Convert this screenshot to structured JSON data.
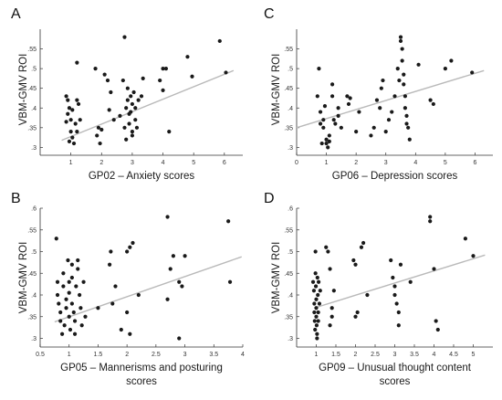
{
  "chart_data": [
    {
      "panel": "A",
      "type": "scatter",
      "xlabel": "GP02 – Anxiety scores",
      "xlabel2": "",
      "ylabel": "VBM-GMV ROI",
      "xlim": [
        0,
        6.6
      ],
      "ylim": [
        0.28,
        0.6
      ],
      "xticks": [
        1,
        2,
        3,
        4,
        5,
        6
      ],
      "yticks": [
        0.3,
        0.35,
        0.4,
        0.45,
        0.5,
        0.55
      ],
      "grid": false,
      "legend": "none",
      "fit": [
        [
          0.7,
          0.318
        ],
        [
          6.3,
          0.495
        ]
      ],
      "points": [
        [
          0.85,
          0.43
        ],
        [
          0.9,
          0.385
        ],
        [
          0.85,
          0.365
        ],
        [
          0.95,
          0.4
        ],
        [
          0.9,
          0.42
        ],
        [
          1.0,
          0.37
        ],
        [
          1.05,
          0.395
        ],
        [
          1.0,
          0.34
        ],
        [
          1.1,
          0.31
        ],
        [
          1.05,
          0.325
        ],
        [
          0.95,
          0.315
        ],
        [
          1.2,
          0.42
        ],
        [
          1.25,
          0.41
        ],
        [
          1.3,
          0.37
        ],
        [
          1.2,
          0.515
        ],
        [
          1.15,
          0.36
        ],
        [
          1.2,
          0.34
        ],
        [
          1.8,
          0.5
        ],
        [
          1.85,
          0.33
        ],
        [
          1.9,
          0.35
        ],
        [
          2.0,
          0.345
        ],
        [
          1.95,
          0.31
        ],
        [
          2.1,
          0.485
        ],
        [
          2.2,
          0.47
        ],
        [
          2.25,
          0.395
        ],
        [
          2.3,
          0.44
        ],
        [
          2.4,
          0.37
        ],
        [
          2.6,
          0.38
        ],
        [
          2.7,
          0.47
        ],
        [
          2.75,
          0.58
        ],
        [
          2.8,
          0.32
        ],
        [
          2.75,
          0.35
        ],
        [
          2.8,
          0.4
        ],
        [
          2.85,
          0.42
        ],
        [
          2.9,
          0.36
        ],
        [
          2.85,
          0.45
        ],
        [
          2.9,
          0.385
        ],
        [
          2.95,
          0.43
        ],
        [
          3.0,
          0.34
        ],
        [
          3.0,
          0.33
        ],
        [
          2.95,
          0.39
        ],
        [
          3.0,
          0.41
        ],
        [
          3.05,
          0.44
        ],
        [
          3.1,
          0.37
        ],
        [
          3.1,
          0.4
        ],
        [
          3.15,
          0.35
        ],
        [
          3.2,
          0.42
        ],
        [
          3.3,
          0.43
        ],
        [
          3.35,
          0.475
        ],
        [
          3.9,
          0.47
        ],
        [
          4.0,
          0.5
        ],
        [
          4.0,
          0.445
        ],
        [
          4.1,
          0.5
        ],
        [
          4.2,
          0.34
        ],
        [
          4.8,
          0.53
        ],
        [
          4.95,
          0.48
        ],
        [
          5.85,
          0.57
        ],
        [
          6.05,
          0.49
        ]
      ]
    },
    {
      "panel": "C",
      "type": "scatter",
      "xlabel": "GP06 – Depression scores",
      "xlabel2": "",
      "ylabel": "VBM-GMV ROI",
      "xlim": [
        0,
        6.6
      ],
      "ylim": [
        0.28,
        0.6
      ],
      "xticks": [
        0,
        1,
        2,
        3,
        4,
        5,
        6
      ],
      "yticks": [
        0.3,
        0.35,
        0.4,
        0.45,
        0.5,
        0.55
      ],
      "grid": false,
      "legend": "none",
      "fit": [
        [
          0.0,
          0.35
        ],
        [
          6.3,
          0.495
        ]
      ],
      "points": [
        [
          0.7,
          0.43
        ],
        [
          0.75,
          0.5
        ],
        [
          0.8,
          0.39
        ],
        [
          0.8,
          0.36
        ],
        [
          0.85,
          0.31
        ],
        [
          0.9,
          0.35
        ],
        [
          0.9,
          0.37
        ],
        [
          0.95,
          0.405
        ],
        [
          1.0,
          0.31
        ],
        [
          1.0,
          0.32
        ],
        [
          1.05,
          0.3
        ],
        [
          1.1,
          0.315
        ],
        [
          1.1,
          0.33
        ],
        [
          1.2,
          0.46
        ],
        [
          1.2,
          0.43
        ],
        [
          1.25,
          0.37
        ],
        [
          1.3,
          0.36
        ],
        [
          1.4,
          0.38
        ],
        [
          1.4,
          0.4
        ],
        [
          1.5,
          0.35
        ],
        [
          1.7,
          0.43
        ],
        [
          1.75,
          0.41
        ],
        [
          1.8,
          0.425
        ],
        [
          2.0,
          0.34
        ],
        [
          2.1,
          0.39
        ],
        [
          2.5,
          0.33
        ],
        [
          2.6,
          0.35
        ],
        [
          2.7,
          0.42
        ],
        [
          2.8,
          0.4
        ],
        [
          2.85,
          0.45
        ],
        [
          2.9,
          0.47
        ],
        [
          3.0,
          0.34
        ],
        [
          3.1,
          0.37
        ],
        [
          3.2,
          0.39
        ],
        [
          3.3,
          0.43
        ],
        [
          3.4,
          0.5
        ],
        [
          3.45,
          0.47
        ],
        [
          3.5,
          0.58
        ],
        [
          3.5,
          0.57
        ],
        [
          3.55,
          0.55
        ],
        [
          3.55,
          0.52
        ],
        [
          3.6,
          0.485
        ],
        [
          3.6,
          0.46
        ],
        [
          3.65,
          0.43
        ],
        [
          3.65,
          0.4
        ],
        [
          3.7,
          0.38
        ],
        [
          3.7,
          0.36
        ],
        [
          3.75,
          0.35
        ],
        [
          3.8,
          0.32
        ],
        [
          4.1,
          0.51
        ],
        [
          4.5,
          0.42
        ],
        [
          4.6,
          0.41
        ],
        [
          5.0,
          0.5
        ],
        [
          5.2,
          0.52
        ],
        [
          5.9,
          0.49
        ]
      ]
    },
    {
      "panel": "B",
      "type": "scatter",
      "xlabel": "GP05 –  Mannerisms and posturing",
      "xlabel2": "scores",
      "ylabel": "VBM-GMV ROI",
      "xlim": [
        0.5,
        4.0
      ],
      "ylim": [
        0.28,
        0.6
      ],
      "xticks": [
        0.5,
        1,
        1.5,
        2,
        2.5,
        3,
        3.5,
        4
      ],
      "yticks": [
        0.3,
        0.35,
        0.4,
        0.45,
        0.5,
        0.55,
        0.6
      ],
      "grid": false,
      "legend": "none",
      "fit": [
        [
          0.75,
          0.338
        ],
        [
          3.98,
          0.488
        ]
      ],
      "points": [
        [
          0.78,
          0.53
        ],
        [
          0.8,
          0.43
        ],
        [
          0.8,
          0.4
        ],
        [
          0.82,
          0.38
        ],
        [
          0.85,
          0.36
        ],
        [
          0.85,
          0.34
        ],
        [
          0.88,
          0.31
        ],
        [
          0.9,
          0.45
        ],
        [
          0.9,
          0.42
        ],
        [
          0.92,
          0.33
        ],
        [
          0.95,
          0.39
        ],
        [
          0.95,
          0.37
        ],
        [
          0.98,
          0.48
        ],
        [
          1.0,
          0.43
        ],
        [
          1.0,
          0.405
        ],
        [
          1.0,
          0.35
        ],
        [
          1.02,
          0.32
        ],
        [
          1.05,
          0.47
        ],
        [
          1.05,
          0.44
        ],
        [
          1.05,
          0.38
        ],
        [
          1.08,
          0.36
        ],
        [
          1.1,
          0.34
        ],
        [
          1.1,
          0.31
        ],
        [
          1.12,
          0.42
        ],
        [
          1.15,
          0.48
        ],
        [
          1.15,
          0.46
        ],
        [
          1.18,
          0.4
        ],
        [
          1.2,
          0.37
        ],
        [
          1.22,
          0.33
        ],
        [
          1.25,
          0.43
        ],
        [
          1.28,
          0.35
        ],
        [
          1.5,
          0.37
        ],
        [
          1.7,
          0.47
        ],
        [
          1.72,
          0.5
        ],
        [
          1.75,
          0.38
        ],
        [
          1.8,
          0.42
        ],
        [
          1.9,
          0.32
        ],
        [
          2.0,
          0.5
        ],
        [
          2.05,
          0.51
        ],
        [
          2.1,
          0.52
        ],
        [
          2.2,
          0.4
        ],
        [
          2.0,
          0.36
        ],
        [
          2.05,
          0.31
        ],
        [
          2.7,
          0.58
        ],
        [
          2.7,
          0.39
        ],
        [
          2.75,
          0.46
        ],
        [
          2.8,
          0.49
        ],
        [
          2.9,
          0.43
        ],
        [
          2.9,
          0.3
        ],
        [
          3.0,
          0.49
        ],
        [
          2.95,
          0.42
        ],
        [
          3.75,
          0.57
        ],
        [
          3.78,
          0.43
        ]
      ]
    },
    {
      "panel": "D",
      "type": "scatter",
      "xlabel": "GP09 – Unusual thought content",
      "xlabel2": "scores",
      "ylabel": "VBM-GMV ROI",
      "xlim": [
        0.5,
        5.5
      ],
      "ylim": [
        0.28,
        0.6
      ],
      "xticks": [
        1,
        1.5,
        2,
        2.5,
        3,
        3.5,
        4,
        4.5,
        5
      ],
      "yticks": [
        0.3,
        0.35,
        0.4,
        0.45,
        0.5,
        0.55,
        0.6
      ],
      "grid": false,
      "legend": "none",
      "fit": [
        [
          0.95,
          0.37
        ],
        [
          5.3,
          0.492
        ]
      ],
      "points": [
        [
          0.92,
          0.43
        ],
        [
          0.94,
          0.41
        ],
        [
          0.95,
          0.38
        ],
        [
          0.95,
          0.36
        ],
        [
          0.96,
          0.34
        ],
        [
          0.97,
          0.32
        ],
        [
          0.98,
          0.5
        ],
        [
          0.98,
          0.45
        ],
        [
          0.99,
          0.42
        ],
        [
          1.0,
          0.39
        ],
        [
          1.0,
          0.37
        ],
        [
          1.0,
          0.35
        ],
        [
          1.01,
          0.33
        ],
        [
          1.02,
          0.31
        ],
        [
          1.02,
          0.3
        ],
        [
          1.03,
          0.44
        ],
        [
          1.04,
          0.4
        ],
        [
          1.05,
          0.36
        ],
        [
          1.05,
          0.34
        ],
        [
          1.06,
          0.43
        ],
        [
          1.08,
          0.38
        ],
        [
          1.1,
          0.41
        ],
        [
          1.25,
          0.51
        ],
        [
          1.3,
          0.5
        ],
        [
          1.35,
          0.46
        ],
        [
          1.35,
          0.33
        ],
        [
          1.4,
          0.37
        ],
        [
          1.4,
          0.35
        ],
        [
          1.45,
          0.41
        ],
        [
          1.95,
          0.48
        ],
        [
          2.0,
          0.47
        ],
        [
          2.0,
          0.35
        ],
        [
          2.05,
          0.36
        ],
        [
          2.15,
          0.51
        ],
        [
          2.2,
          0.52
        ],
        [
          2.3,
          0.4
        ],
        [
          2.9,
          0.48
        ],
        [
          2.95,
          0.44
        ],
        [
          3.0,
          0.42
        ],
        [
          3.0,
          0.4
        ],
        [
          3.05,
          0.38
        ],
        [
          3.1,
          0.36
        ],
        [
          3.1,
          0.33
        ],
        [
          3.15,
          0.47
        ],
        [
          3.4,
          0.43
        ],
        [
          3.9,
          0.58
        ],
        [
          3.9,
          0.57
        ],
        [
          4.0,
          0.46
        ],
        [
          4.05,
          0.34
        ],
        [
          4.1,
          0.32
        ],
        [
          4.8,
          0.53
        ],
        [
          5.0,
          0.49
        ]
      ]
    }
  ],
  "panel_labels": [
    "A",
    "C",
    "B",
    "D"
  ]
}
